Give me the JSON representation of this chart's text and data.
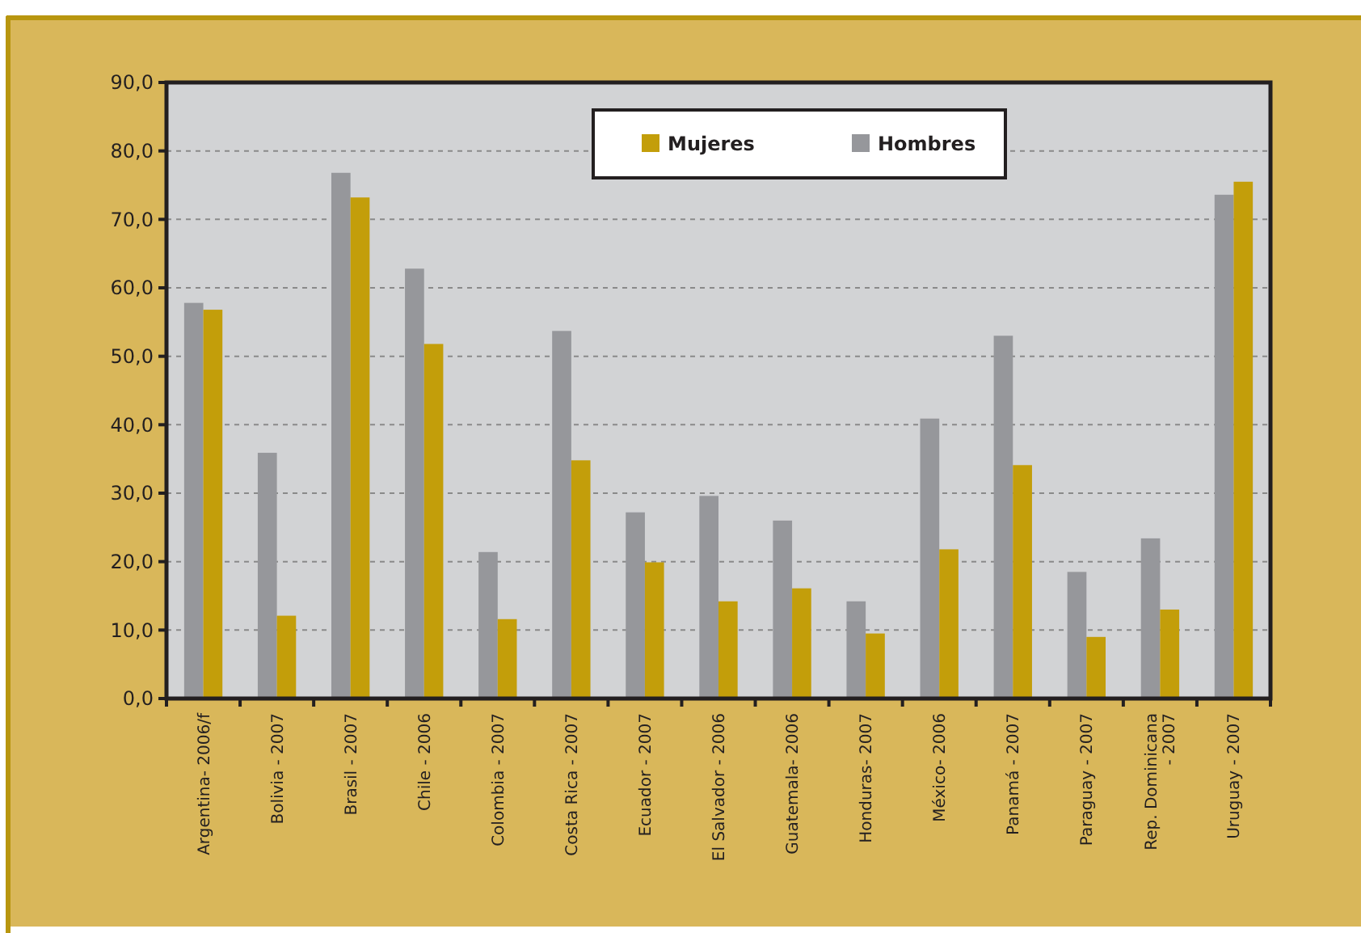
{
  "chart_data": {
    "type": "bar",
    "categories": [
      "Argentina- 2006/f",
      "Bolivia - 2007",
      "Brasil - 2007",
      "Chile - 2006",
      "Colombia - 2007",
      "Costa Rica - 2007",
      "Ecuador - 2007",
      "El Salvador - 2006",
      "Guatemala- 2006",
      "Honduras- 2007",
      "México- 2006",
      "Panamá - 2007",
      "Paraguay - 2007",
      "Rep. Dominicana - 2007",
      "Uruguay - 2007"
    ],
    "series": [
      {
        "name": "Hombres",
        "color": "#96979b",
        "values": [
          57.8,
          35.9,
          76.8,
          62.8,
          21.4,
          53.7,
          27.2,
          29.6,
          26.0,
          14.2,
          40.9,
          53.0,
          18.5,
          23.4,
          73.6
        ]
      },
      {
        "name": "Mujeres",
        "color": "#c39e0a",
        "values": [
          56.8,
          12.1,
          73.2,
          51.8,
          11.6,
          34.8,
          19.9,
          14.2,
          16.1,
          9.5,
          21.8,
          34.1,
          9.0,
          13.0,
          75.5
        ]
      }
    ],
    "ylim": [
      0,
      90
    ],
    "yticks": [
      {
        "value": 0,
        "label": "0,0"
      },
      {
        "value": 10,
        "label": "10,0"
      },
      {
        "value": 20,
        "label": "20,0"
      },
      {
        "value": 30,
        "label": "30,0"
      },
      {
        "value": 40,
        "label": "40,0"
      },
      {
        "value": 50,
        "label": "50,0"
      },
      {
        "value": 60,
        "label": "60,0"
      },
      {
        "value": 70,
        "label": "70,0"
      },
      {
        "value": 80,
        "label": "80,0"
      },
      {
        "value": 90,
        "label": "90,0"
      }
    ],
    "grid": "y",
    "legend": "top"
  }
}
